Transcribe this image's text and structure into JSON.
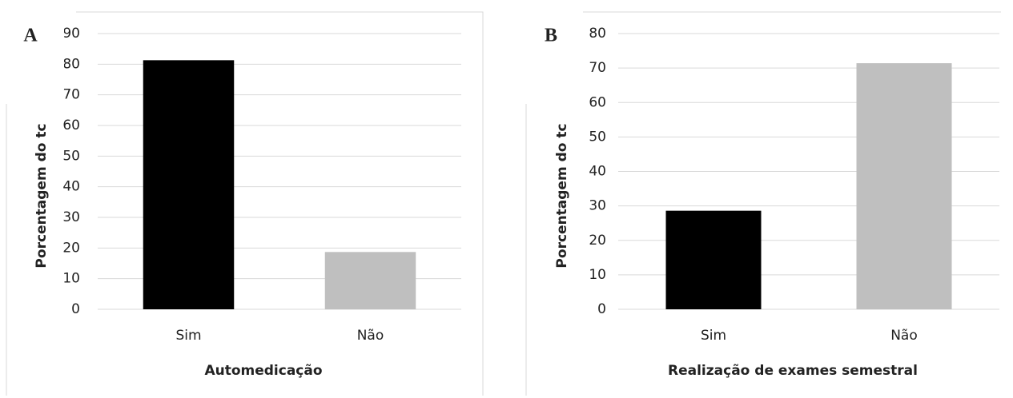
{
  "chart_data": [
    {
      "type": "bar",
      "panel_label": "A",
      "x_label": "Automedicação",
      "y_label": "Porcentagem do tc",
      "categories": [
        "Sim",
        "Não"
      ],
      "values": [
        81.3,
        18.7
      ],
      "colors": [
        "#000000",
        "#bfbfbf"
      ],
      "ylim": [
        0,
        90
      ],
      "yticks": [
        0,
        10,
        20,
        30,
        40,
        50,
        60,
        70,
        80,
        90
      ],
      "grid": true
    },
    {
      "type": "bar",
      "panel_label": "B",
      "x_label": "Realização de exames semestral",
      "y_label": "Porcentagem do tc",
      "categories": [
        "Sim",
        "Não"
      ],
      "values": [
        28.6,
        71.4
      ],
      "colors": [
        "#000000",
        "#bfbfbf"
      ],
      "ylim": [
        0,
        80
      ],
      "yticks": [
        0,
        10,
        20,
        30,
        40,
        50,
        60,
        70,
        80
      ],
      "grid": true
    }
  ]
}
